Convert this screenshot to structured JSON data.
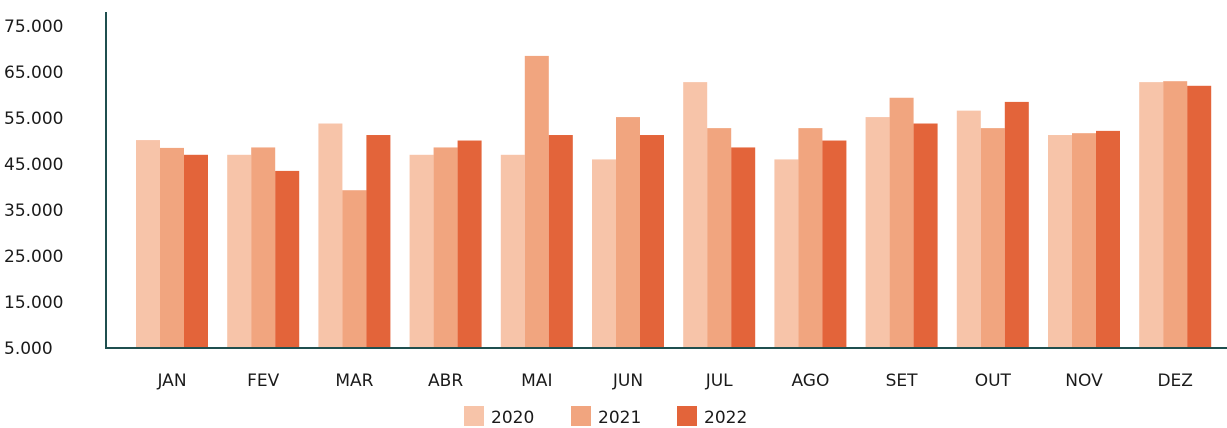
{
  "chart_data": {
    "type": "bar",
    "categories": [
      "JAN",
      "FEV",
      "MAR",
      "ABR",
      "MAI",
      "JUN",
      "JUL",
      "AGO",
      "SET",
      "OUT",
      "NOV",
      "DEZ"
    ],
    "series": [
      {
        "name": "2020",
        "color": "#f7c4a9",
        "values": [
          50200,
          47000,
          53800,
          47000,
          47000,
          46000,
          62800,
          46000,
          55200,
          56600,
          51300,
          62800
        ]
      },
      {
        "name": "2021",
        "color": "#f1a57f",
        "values": [
          48500,
          48600,
          39300,
          48600,
          68500,
          55200,
          52800,
          52800,
          59400,
          52800,
          51700,
          63000
        ]
      },
      {
        "name": "2022",
        "color": "#e3643a",
        "values": [
          47000,
          43500,
          51300,
          50100,
          51300,
          51300,
          48600,
          50100,
          53800,
          58500,
          52200,
          62000
        ]
      }
    ],
    "y_ticks": [
      "75.000",
      "65.000",
      "55.000",
      "45.000",
      "35.000",
      "25.000",
      "15.000",
      "5.000"
    ],
    "y_tick_values": [
      75000,
      65000,
      55000,
      45000,
      35000,
      25000,
      15000,
      5000
    ],
    "ylim": [
      5000,
      75000
    ],
    "title": "",
    "xlabel": "",
    "ylabel": "",
    "grid": false,
    "legend_position": "bottom-center",
    "axis_color": "#1f4f4f"
  }
}
